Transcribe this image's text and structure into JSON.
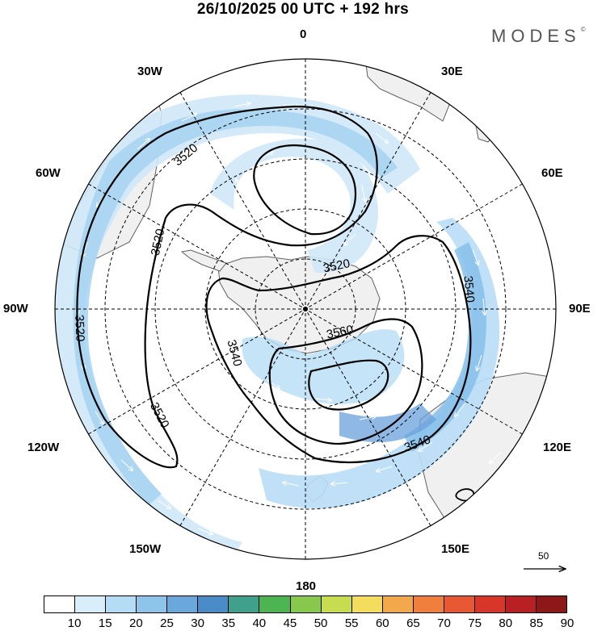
{
  "title": "26/10/2025  00 UTC  + 192 hrs",
  "brand": "MODES",
  "brand_mark": "©",
  "longitude_labels": [
    {
      "id": "0",
      "text": "0"
    },
    {
      "id": "30E",
      "text": "30E"
    },
    {
      "id": "60E",
      "text": "60E"
    },
    {
      "id": "90E",
      "text": "90E"
    },
    {
      "id": "120E",
      "text": "120E"
    },
    {
      "id": "150E",
      "text": "150E"
    },
    {
      "id": "180",
      "text": "180"
    },
    {
      "id": "150W",
      "text": "150W"
    },
    {
      "id": "120W",
      "text": "120W"
    },
    {
      "id": "90W",
      "text": "90W"
    },
    {
      "id": "60W",
      "text": "60W"
    },
    {
      "id": "30W",
      "text": "30W"
    }
  ],
  "contour_labels": [
    {
      "id": "c1",
      "text": "3520"
    },
    {
      "id": "c2",
      "text": "3520"
    },
    {
      "id": "c3",
      "text": "3520"
    },
    {
      "id": "c4",
      "text": "3520"
    },
    {
      "id": "c5",
      "text": "3520"
    },
    {
      "id": "c6",
      "text": "3540"
    },
    {
      "id": "c7",
      "text": "3540"
    },
    {
      "id": "c8",
      "text": "3540"
    },
    {
      "id": "c9",
      "text": "3560"
    }
  ],
  "vector_scale_label": "50",
  "colorbar": {
    "ticks": [
      "10",
      "15",
      "20",
      "25",
      "30",
      "35",
      "40",
      "45",
      "50",
      "55",
      "60",
      "65",
      "70",
      "75",
      "80",
      "85",
      "90"
    ],
    "colors": [
      "#ffffff",
      "#d8eefb",
      "#b4dcf4",
      "#8ec4ea",
      "#6aa8dc",
      "#4a8cc8",
      "#3fa08c",
      "#4cb450",
      "#88c84c",
      "#c8dc50",
      "#f4dc5c",
      "#f4a84c",
      "#f07e3c",
      "#e85832",
      "#d83628",
      "#b82024",
      "#8c1818"
    ]
  },
  "legend_colors": {
    "land": "#f0f0f0",
    "coast": "#606060",
    "light_wind": "#cfe8f8",
    "moderate_wind": "#9ccbee",
    "strong_wind": "#6aa0dc"
  }
}
